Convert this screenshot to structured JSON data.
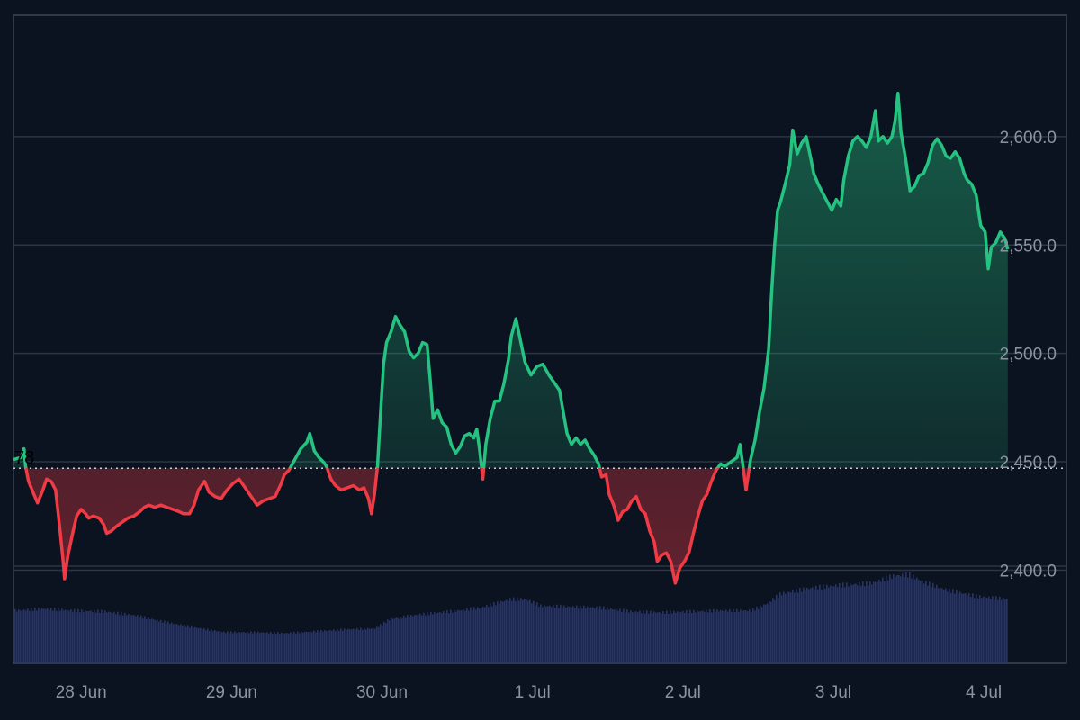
{
  "edge_label": "78",
  "chart_data": {
    "type": "area",
    "baseline": 2447,
    "ylim": [
      2357,
      2656
    ],
    "y_ticks": [
      {
        "value": 2400,
        "label": "2,400.0"
      },
      {
        "value": 2450,
        "label": "2,450.0"
      },
      {
        "value": 2500,
        "label": "2,500.0"
      },
      {
        "value": 2550,
        "label": "2,550.0"
      },
      {
        "value": 2600,
        "label": "2,600.0"
      }
    ],
    "x_ticks": [
      "28 Jun",
      "29 Jun",
      "30 Jun",
      "1 Jul",
      "2 Jul",
      "3 Jul",
      "4 Jul"
    ],
    "x_tick_values": [
      0.45,
      1.45,
      2.45,
      3.45,
      4.45,
      5.45,
      6.45
    ],
    "x_range": [
      0,
      7.0
    ],
    "colors": {
      "up": "#26c281",
      "down": "#ef3b45",
      "volume": "#2a3660",
      "grid": "#2b3544",
      "baseline": "#c9ced6"
    },
    "price": [
      [
        0.0,
        2451
      ],
      [
        0.05,
        2452
      ],
      [
        0.07,
        2456
      ],
      [
        0.08,
        2448
      ],
      [
        0.1,
        2441
      ],
      [
        0.13,
        2436
      ],
      [
        0.16,
        2431
      ],
      [
        0.19,
        2436
      ],
      [
        0.22,
        2442
      ],
      [
        0.25,
        2441
      ],
      [
        0.28,
        2437
      ],
      [
        0.31,
        2418
      ],
      [
        0.33,
        2404
      ],
      [
        0.34,
        2396
      ],
      [
        0.36,
        2406
      ],
      [
        0.39,
        2416
      ],
      [
        0.42,
        2425
      ],
      [
        0.45,
        2428
      ],
      [
        0.48,
        2426
      ],
      [
        0.5,
        2424
      ],
      [
        0.53,
        2425
      ],
      [
        0.57,
        2424
      ],
      [
        0.6,
        2421
      ],
      [
        0.62,
        2417
      ],
      [
        0.65,
        2418
      ],
      [
        0.68,
        2420
      ],
      [
        0.72,
        2422
      ],
      [
        0.76,
        2424
      ],
      [
        0.8,
        2425
      ],
      [
        0.84,
        2427
      ],
      [
        0.87,
        2429
      ],
      [
        0.9,
        2430
      ],
      [
        0.94,
        2429
      ],
      [
        0.98,
        2430
      ],
      [
        1.02,
        2429
      ],
      [
        1.06,
        2428
      ],
      [
        1.1,
        2427
      ],
      [
        1.13,
        2426
      ],
      [
        1.17,
        2426
      ],
      [
        1.2,
        2430
      ],
      [
        1.23,
        2437
      ],
      [
        1.27,
        2441
      ],
      [
        1.3,
        2436
      ],
      [
        1.34,
        2434
      ],
      [
        1.38,
        2433
      ],
      [
        1.42,
        2437
      ],
      [
        1.46,
        2440
      ],
      [
        1.5,
        2442
      ],
      [
        1.54,
        2438
      ],
      [
        1.58,
        2434
      ],
      [
        1.62,
        2430
      ],
      [
        1.66,
        2432
      ],
      [
        1.7,
        2433
      ],
      [
        1.74,
        2434
      ],
      [
        1.78,
        2440
      ],
      [
        1.8,
        2444
      ],
      [
        1.83,
        2446
      ],
      [
        1.87,
        2451
      ],
      [
        1.91,
        2456
      ],
      [
        1.95,
        2459
      ],
      [
        1.97,
        2463
      ],
      [
        2.0,
        2455
      ],
      [
        2.03,
        2452
      ],
      [
        2.06,
        2450
      ],
      [
        2.08,
        2448
      ],
      [
        2.11,
        2442
      ],
      [
        2.14,
        2439
      ],
      [
        2.18,
        2437
      ],
      [
        2.22,
        2438
      ],
      [
        2.26,
        2439
      ],
      [
        2.3,
        2437
      ],
      [
        2.33,
        2438
      ],
      [
        2.36,
        2433
      ],
      [
        2.38,
        2426
      ],
      [
        2.4,
        2435
      ],
      [
        2.42,
        2448
      ],
      [
        2.44,
        2472
      ],
      [
        2.46,
        2495
      ],
      [
        2.48,
        2505
      ],
      [
        2.51,
        2510
      ],
      [
        2.54,
        2517
      ],
      [
        2.57,
        2513
      ],
      [
        2.6,
        2510
      ],
      [
        2.63,
        2501
      ],
      [
        2.66,
        2498
      ],
      [
        2.69,
        2500
      ],
      [
        2.72,
        2505
      ],
      [
        2.75,
        2504
      ],
      [
        2.77,
        2488
      ],
      [
        2.79,
        2470
      ],
      [
        2.82,
        2474
      ],
      [
        2.85,
        2468
      ],
      [
        2.88,
        2466
      ],
      [
        2.91,
        2458
      ],
      [
        2.94,
        2454
      ],
      [
        2.97,
        2457
      ],
      [
        3.0,
        2462
      ],
      [
        3.03,
        2463
      ],
      [
        3.06,
        2461
      ],
      [
        3.08,
        2465
      ],
      [
        3.1,
        2455
      ],
      [
        3.12,
        2442
      ],
      [
        3.14,
        2458
      ],
      [
        3.17,
        2470
      ],
      [
        3.2,
        2478
      ],
      [
        3.23,
        2478
      ],
      [
        3.26,
        2486
      ],
      [
        3.29,
        2497
      ],
      [
        3.31,
        2508
      ],
      [
        3.34,
        2516
      ],
      [
        3.37,
        2506
      ],
      [
        3.4,
        2496
      ],
      [
        3.44,
        2490
      ],
      [
        3.48,
        2494
      ],
      [
        3.52,
        2495
      ],
      [
        3.56,
        2490
      ],
      [
        3.6,
        2486
      ],
      [
        3.63,
        2483
      ],
      [
        3.66,
        2471
      ],
      [
        3.68,
        2463
      ],
      [
        3.71,
        2458
      ],
      [
        3.74,
        2461
      ],
      [
        3.77,
        2458
      ],
      [
        3.8,
        2460
      ],
      [
        3.83,
        2456
      ],
      [
        3.86,
        2453
      ],
      [
        3.89,
        2449
      ],
      [
        3.91,
        2443
      ],
      [
        3.94,
        2444
      ],
      [
        3.96,
        2435
      ],
      [
        3.99,
        2430
      ],
      [
        4.02,
        2423
      ],
      [
        4.05,
        2427
      ],
      [
        4.08,
        2428
      ],
      [
        4.11,
        2432
      ],
      [
        4.14,
        2434
      ],
      [
        4.17,
        2428
      ],
      [
        4.2,
        2426
      ],
      [
        4.23,
        2418
      ],
      [
        4.26,
        2413
      ],
      [
        4.28,
        2404
      ],
      [
        4.31,
        2407
      ],
      [
        4.34,
        2408
      ],
      [
        4.37,
        2404
      ],
      [
        4.4,
        2394
      ],
      [
        4.43,
        2401
      ],
      [
        4.46,
        2404
      ],
      [
        4.49,
        2408
      ],
      [
        4.52,
        2417
      ],
      [
        4.55,
        2425
      ],
      [
        4.58,
        2432
      ],
      [
        4.61,
        2435
      ],
      [
        4.64,
        2441
      ],
      [
        4.67,
        2446
      ],
      [
        4.7,
        2449
      ],
      [
        4.73,
        2448
      ],
      [
        4.77,
        2450
      ],
      [
        4.81,
        2452
      ],
      [
        4.83,
        2458
      ],
      [
        4.85,
        2448
      ],
      [
        4.87,
        2437
      ],
      [
        4.9,
        2451
      ],
      [
        4.93,
        2460
      ],
      [
        4.96,
        2473
      ],
      [
        4.99,
        2484
      ],
      [
        5.02,
        2502
      ],
      [
        5.04,
        2528
      ],
      [
        5.06,
        2550
      ],
      [
        5.08,
        2566
      ],
      [
        5.1,
        2570
      ],
      [
        5.13,
        2578
      ],
      [
        5.16,
        2587
      ],
      [
        5.18,
        2603
      ],
      [
        5.21,
        2592
      ],
      [
        5.24,
        2597
      ],
      [
        5.27,
        2600
      ],
      [
        5.3,
        2590
      ],
      [
        5.32,
        2583
      ],
      [
        5.35,
        2578
      ],
      [
        5.38,
        2574
      ],
      [
        5.41,
        2570
      ],
      [
        5.44,
        2566
      ],
      [
        5.47,
        2571
      ],
      [
        5.5,
        2568
      ],
      [
        5.52,
        2580
      ],
      [
        5.55,
        2591
      ],
      [
        5.58,
        2598
      ],
      [
        5.61,
        2600
      ],
      [
        5.64,
        2598
      ],
      [
        5.67,
        2595
      ],
      [
        5.7,
        2600
      ],
      [
        5.73,
        2612
      ],
      [
        5.75,
        2598
      ],
      [
        5.78,
        2600
      ],
      [
        5.81,
        2597
      ],
      [
        5.84,
        2600
      ],
      [
        5.86,
        2607
      ],
      [
        5.88,
        2620
      ],
      [
        5.9,
        2602
      ],
      [
        5.93,
        2590
      ],
      [
        5.96,
        2575
      ],
      [
        5.99,
        2577
      ],
      [
        6.02,
        2582
      ],
      [
        6.05,
        2583
      ],
      [
        6.08,
        2588
      ],
      [
        6.11,
        2596
      ],
      [
        6.14,
        2599
      ],
      [
        6.17,
        2596
      ],
      [
        6.2,
        2591
      ],
      [
        6.23,
        2590
      ],
      [
        6.26,
        2593
      ],
      [
        6.29,
        2590
      ],
      [
        6.32,
        2583
      ],
      [
        6.34,
        2580
      ],
      [
        6.37,
        2578
      ],
      [
        6.4,
        2573
      ],
      [
        6.43,
        2559
      ],
      [
        6.46,
        2556
      ],
      [
        6.48,
        2539
      ],
      [
        6.5,
        2549
      ],
      [
        6.53,
        2551
      ],
      [
        6.56,
        2556
      ],
      [
        6.59,
        2553
      ],
      [
        6.61,
        2548
      ]
    ],
    "volume": [
      [
        0.0,
        0.56
      ],
      [
        0.2,
        0.58
      ],
      [
        0.4,
        0.56
      ],
      [
        0.6,
        0.55
      ],
      [
        0.8,
        0.51
      ],
      [
        1.0,
        0.44
      ],
      [
        1.2,
        0.38
      ],
      [
        1.4,
        0.33
      ],
      [
        1.6,
        0.33
      ],
      [
        1.8,
        0.32
      ],
      [
        2.0,
        0.34
      ],
      [
        2.2,
        0.36
      ],
      [
        2.4,
        0.37
      ],
      [
        2.5,
        0.47
      ],
      [
        2.7,
        0.52
      ],
      [
        2.9,
        0.55
      ],
      [
        3.1,
        0.59
      ],
      [
        3.3,
        0.68
      ],
      [
        3.4,
        0.68
      ],
      [
        3.5,
        0.61
      ],
      [
        3.7,
        0.6
      ],
      [
        3.9,
        0.59
      ],
      [
        4.1,
        0.55
      ],
      [
        4.3,
        0.54
      ],
      [
        4.5,
        0.55
      ],
      [
        4.7,
        0.56
      ],
      [
        4.9,
        0.56
      ],
      [
        5.0,
        0.63
      ],
      [
        5.1,
        0.74
      ],
      [
        5.3,
        0.8
      ],
      [
        5.5,
        0.83
      ],
      [
        5.7,
        0.85
      ],
      [
        5.85,
        0.93
      ],
      [
        5.95,
        0.94
      ],
      [
        6.05,
        0.86
      ],
      [
        6.2,
        0.78
      ],
      [
        6.4,
        0.71
      ],
      [
        6.61,
        0.68
      ]
    ]
  }
}
